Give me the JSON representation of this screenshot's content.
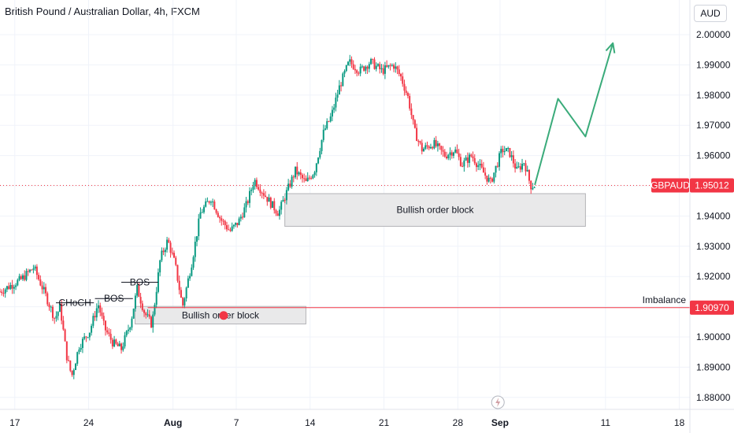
{
  "header": {
    "title": "British Pound / Australian Dollar, 4h, FXCM",
    "currency": "AUD"
  },
  "chart_data": {
    "type": "candlestick",
    "symbol": "GBPAUD",
    "interval": "4h",
    "y_axis_ticks": [
      "2.00000",
      "1.99000",
      "1.98000",
      "1.97000",
      "1.96000",
      "1.95000",
      "1.94000",
      "1.93000",
      "1.92000",
      "1.91000",
      "1.90000",
      "1.89000",
      "1.88000"
    ],
    "y_axis_values": [
      2.0,
      1.99,
      1.98,
      1.97,
      1.96,
      1.95,
      1.94,
      1.93,
      1.92,
      1.91,
      1.9,
      1.89,
      1.88
    ],
    "ylim": [
      1.876,
      2.005
    ],
    "x_ticks": [
      {
        "label": "17",
        "day": 0,
        "bold": false
      },
      {
        "label": "24",
        "day": 7,
        "bold": false
      },
      {
        "label": "Aug",
        "day": 15,
        "bold": true
      },
      {
        "label": "7",
        "day": 21,
        "bold": false
      },
      {
        "label": "14",
        "day": 28,
        "bold": false
      },
      {
        "label": "21",
        "day": 35,
        "bold": false
      },
      {
        "label": "28",
        "day": 42,
        "bold": false
      },
      {
        "label": "Sep",
        "day": 46,
        "bold": true
      },
      {
        "label": "11",
        "day": 56,
        "bold": false
      },
      {
        "label": "18",
        "day": 63,
        "bold": false
      }
    ],
    "xlim_days": [
      -1.4,
      64
    ],
    "last_price": {
      "label": "GBPAUD",
      "value": 1.95012,
      "value_text": "1.95012"
    },
    "imbalance_line": {
      "label": "Imbalance",
      "value": 1.9097,
      "value_text": "1.90970"
    },
    "colors": {
      "up": "#089981",
      "down": "#f23645",
      "projection": "#3aab7a",
      "zone_fill": "#e9e9ea",
      "zone_stroke": "#b4b4b8",
      "price_tag": "#f23645"
    },
    "order_blocks": [
      {
        "label": "Bullish order block",
        "x0_day": 11.4,
        "x1_day": 27.6,
        "y_top": 1.9101,
        "y_bottom": 1.9043
      },
      {
        "label": "Bullish order block",
        "x0_day": 25.6,
        "x1_day": 54.1,
        "y_top": 1.9474,
        "y_bottom": 1.9366
      }
    ],
    "structure_labels": [
      {
        "label": "CHoCH",
        "x0_day": 3.9,
        "x1_day": 7.5,
        "y": 1.9113
      },
      {
        "label": "BOS",
        "x0_day": 7.6,
        "x1_day": 11.2,
        "y": 1.9127
      },
      {
        "label": "BOS",
        "x0_day": 10.1,
        "x1_day": 13.6,
        "y": 1.9181
      }
    ],
    "projection_path": [
      {
        "day": 49.3,
        "y": 1.9503
      },
      {
        "day": 51.5,
        "y": 1.9788
      },
      {
        "day": 54.1,
        "y": 1.9663
      },
      {
        "day": 56.7,
        "y": 1.9972
      }
    ],
    "candle_anchors": [
      {
        "day": -1.4,
        "y": 1.915
      },
      {
        "day": 0.6,
        "y": 1.919
      },
      {
        "day": 1.8,
        "y": 1.923
      },
      {
        "day": 2.9,
        "y": 1.914
      },
      {
        "day": 3.8,
        "y": 1.906
      },
      {
        "day": 4.3,
        "y": 1.91
      },
      {
        "day": 4.9,
        "y": 1.894
      },
      {
        "day": 5.4,
        "y": 1.887
      },
      {
        "day": 6.1,
        "y": 1.897
      },
      {
        "day": 7.1,
        "y": 1.902
      },
      {
        "day": 7.9,
        "y": 1.911
      },
      {
        "day": 8.5,
        "y": 1.903
      },
      {
        "day": 9.3,
        "y": 1.898
      },
      {
        "day": 10.1,
        "y": 1.896
      },
      {
        "day": 11.0,
        "y": 1.905
      },
      {
        "day": 11.6,
        "y": 1.916
      },
      {
        "day": 12.3,
        "y": 1.908
      },
      {
        "day": 13.0,
        "y": 1.904
      },
      {
        "day": 13.8,
        "y": 1.926
      },
      {
        "day": 14.5,
        "y": 1.932
      },
      {
        "day": 15.2,
        "y": 1.924
      },
      {
        "day": 15.9,
        "y": 1.91
      },
      {
        "day": 16.8,
        "y": 1.925
      },
      {
        "day": 17.6,
        "y": 1.941
      },
      {
        "day": 18.6,
        "y": 1.946
      },
      {
        "day": 19.5,
        "y": 1.939
      },
      {
        "day": 20.4,
        "y": 1.935
      },
      {
        "day": 21.2,
        "y": 1.938
      },
      {
        "day": 22.0,
        "y": 1.944
      },
      {
        "day": 22.7,
        "y": 1.952
      },
      {
        "day": 23.5,
        "y": 1.948
      },
      {
        "day": 24.3,
        "y": 1.944
      },
      {
        "day": 25.0,
        "y": 1.941
      },
      {
        "day": 25.9,
        "y": 1.949
      },
      {
        "day": 26.6,
        "y": 1.955
      },
      {
        "day": 27.6,
        "y": 1.951
      },
      {
        "day": 28.4,
        "y": 1.955
      },
      {
        "day": 29.3,
        "y": 1.968
      },
      {
        "day": 30.0,
        "y": 1.973
      },
      {
        "day": 30.8,
        "y": 1.983
      },
      {
        "day": 31.7,
        "y": 1.991
      },
      {
        "day": 32.7,
        "y": 1.988
      },
      {
        "day": 33.7,
        "y": 1.991
      },
      {
        "day": 34.8,
        "y": 1.988
      },
      {
        "day": 35.9,
        "y": 1.99
      },
      {
        "day": 36.6,
        "y": 1.986
      },
      {
        "day": 37.3,
        "y": 1.979
      },
      {
        "day": 37.9,
        "y": 1.968
      },
      {
        "day": 38.6,
        "y": 1.962
      },
      {
        "day": 39.7,
        "y": 1.964
      },
      {
        "day": 40.8,
        "y": 1.96
      },
      {
        "day": 41.7,
        "y": 1.962
      },
      {
        "day": 42.4,
        "y": 1.957
      },
      {
        "day": 43.3,
        "y": 1.96
      },
      {
        "day": 44.1,
        "y": 1.956
      },
      {
        "day": 44.7,
        "y": 1.953
      },
      {
        "day": 45.1,
        "y": 1.951
      },
      {
        "day": 45.6,
        "y": 1.956
      },
      {
        "day": 46.2,
        "y": 1.962
      },
      {
        "day": 46.9,
        "y": 1.961
      },
      {
        "day": 47.6,
        "y": 1.955
      },
      {
        "day": 48.3,
        "y": 1.958
      },
      {
        "day": 48.9,
        "y": 1.95
      },
      {
        "day": 49.3,
        "y": 1.9501
      }
    ]
  }
}
